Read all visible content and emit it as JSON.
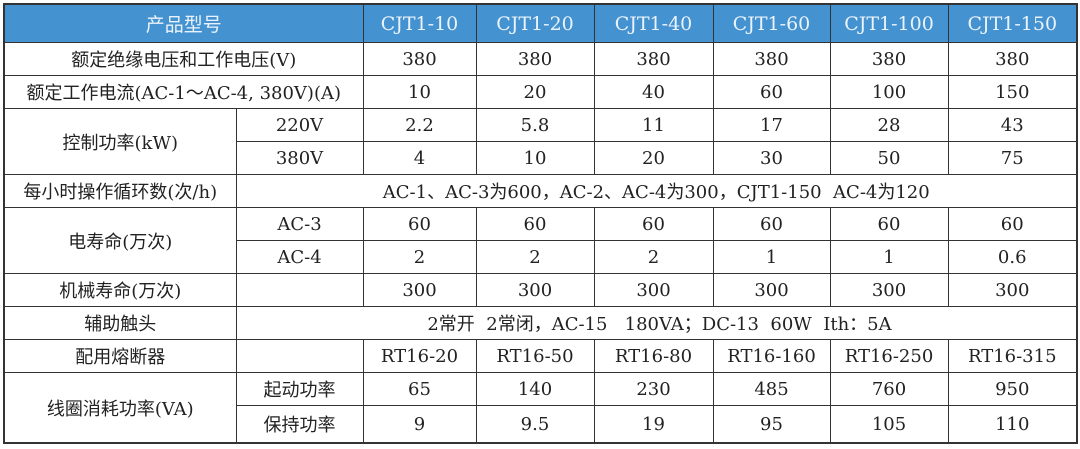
{
  "header": {
    "title": "产品型号",
    "models": [
      "CJT1-10",
      "CJT1-20",
      "CJT1-40",
      "CJT1-60",
      "CJT1-100",
      "CJT1-150"
    ]
  },
  "rows": {
    "insulation": {
      "label": "额定绝缘电压和工作电压(V)",
      "values": [
        "380",
        "380",
        "380",
        "380",
        "380",
        "380"
      ]
    },
    "current": {
      "label": "额定工作电流(AC-1～AC-4, 380V)(A)",
      "values": [
        "10",
        "20",
        "40",
        "60",
        "100",
        "150"
      ]
    },
    "power": {
      "label": "控制功率(kW)",
      "sub": [
        {
          "label": "220V",
          "values": [
            "2.2",
            "5.8",
            "11",
            "17",
            "28",
            "43"
          ]
        },
        {
          "label": "380V",
          "values": [
            "4",
            "10",
            "20",
            "30",
            "50",
            "75"
          ]
        }
      ]
    },
    "cycles": {
      "label": "每小时操作循环数(次/h)",
      "text": "AC-1、AC-3为600，AC-2、AC-4为300，CJT1-150  AC-4为120"
    },
    "elife": {
      "label": "电寿命(万次)",
      "sub": [
        {
          "label": "AC-3",
          "values": [
            "60",
            "60",
            "60",
            "60",
            "60",
            "60"
          ]
        },
        {
          "label": "AC-4",
          "values": [
            "2",
            "2",
            "2",
            "1",
            "1",
            "0.6"
          ]
        }
      ]
    },
    "mlife": {
      "label": "机械寿命(万次)",
      "values": [
        "300",
        "300",
        "300",
        "300",
        "300",
        "300"
      ]
    },
    "aux": {
      "label": "辅助触头",
      "text": "2常开  2常闭，AC-15   180VA；DC-13  60W  Ith：5A"
    },
    "fuse": {
      "label": "配用熔断器",
      "values": [
        "RT16-20",
        "RT16-50",
        "RT16-80",
        "RT16-160",
        "RT16-250",
        "RT16-315"
      ]
    },
    "coil": {
      "label": "线圈消耗功率(VA)",
      "sub": [
        {
          "label": "起动功率",
          "values": [
            "65",
            "140",
            "230",
            "485",
            "760",
            "950"
          ]
        },
        {
          "label": "保持功率",
          "values": [
            "9",
            "9.5",
            "19",
            "95",
            "105",
            "110"
          ]
        }
      ]
    }
  }
}
